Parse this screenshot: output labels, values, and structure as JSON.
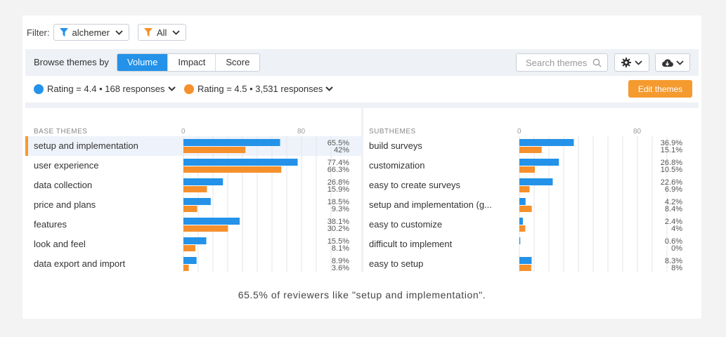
{
  "filter": {
    "label": "Filter:",
    "chip1": "alchemer",
    "chip2": "All"
  },
  "toolbar": {
    "browse_label": "Browse themes by",
    "tabs": [
      "Volume",
      "Impact",
      "Score"
    ],
    "active_tab": "Volume",
    "search_placeholder": "Search themes"
  },
  "legend": {
    "series1": "Rating = 4.4 • 168 responses",
    "series2": "Rating = 4.5 • 3,531 responses",
    "edit_button": "Edit themes"
  },
  "colors": {
    "series1": "#2492e8",
    "series2": "#f5902c",
    "highlight": "#eef3fb",
    "accent": "#f59a2e"
  },
  "chart_data": [
    {
      "type": "bar",
      "title": "BASE THEMES",
      "xlim": [
        0,
        100
      ],
      "ticks": [
        "0",
        "80"
      ],
      "highlighted": "setup and implementation",
      "categories": [
        "setup and implementation",
        "user experience",
        "data collection",
        "price and plans",
        "features",
        "look and feel",
        "data export and import"
      ],
      "series": [
        {
          "name": "Rating = 4.4 • 168 responses",
          "values": [
            65.5,
            77.4,
            26.8,
            18.5,
            38.1,
            15.5,
            8.9
          ],
          "labels": [
            "65.5%",
            "77.4%",
            "26.8%",
            "18.5%",
            "38.1%",
            "15.5%",
            "8.9%"
          ]
        },
        {
          "name": "Rating = 4.5 • 3,531 responses",
          "values": [
            42,
            66.3,
            15.9,
            9.3,
            30.2,
            8.1,
            3.6
          ],
          "labels": [
            "42%",
            "66.3%",
            "15.9%",
            "9.3%",
            "30.2%",
            "8.1%",
            "3.6%"
          ]
        }
      ]
    },
    {
      "type": "bar",
      "title": "SUBTHEMES",
      "xlim": [
        0,
        100
      ],
      "ticks": [
        "0",
        "80"
      ],
      "categories": [
        "build surveys",
        "customization",
        "easy to create surveys",
        "setup and implementation (g...",
        "easy to customize",
        "difficult to implement",
        "easy to setup"
      ],
      "series": [
        {
          "name": "Rating = 4.4 • 168 responses",
          "values": [
            36.9,
            26.8,
            22.6,
            4.2,
            2.4,
            0.6,
            8.3
          ],
          "labels": [
            "36.9%",
            "26.8%",
            "22.6%",
            "4.2%",
            "2.4%",
            "0.6%",
            "8.3%"
          ]
        },
        {
          "name": "Rating = 4.5 • 3,531 responses",
          "values": [
            15.1,
            10.5,
            6.9,
            8.4,
            4,
            0,
            8
          ],
          "labels": [
            "15.1%",
            "10.5%",
            "6.9%",
            "8.4%",
            "4%",
            "0%",
            "8%"
          ]
        }
      ]
    }
  ],
  "caption": "65.5% of reviewers like \"setup and implementation\"."
}
